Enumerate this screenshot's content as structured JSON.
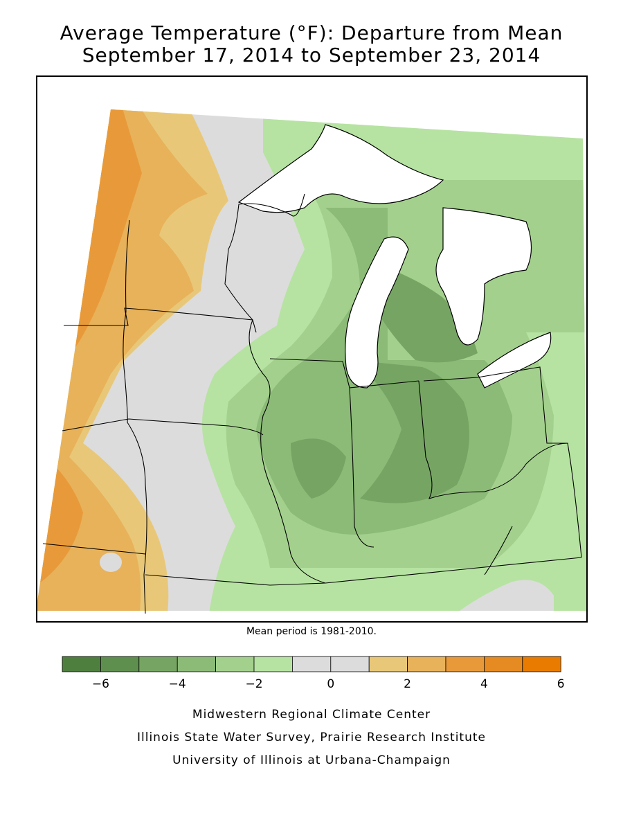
{
  "title": {
    "line1": "Average Temperature (°F): Departure from Mean",
    "line2": "September 17, 2014 to September 23, 2014"
  },
  "note": "Mean period is 1981-2010.",
  "legend": {
    "colors": [
      "#4f7f3e",
      "#5f8f4e",
      "#76a563",
      "#8cbb78",
      "#a3d18d",
      "#b6e3a2",
      "#dcdcdc",
      "#dcdcdc",
      "#e8c878",
      "#e8b25a",
      "#e89a3a",
      "#e68a22",
      "#e87b00"
    ],
    "tick_labels": [
      "−6",
      "−4",
      "−2",
      "0",
      "2",
      "4",
      "6"
    ]
  },
  "credits": [
    "Midwestern Regional Climate Center",
    "Illinois State Water Survey, Prairie Research Institute",
    "University of Illinois at Urbana-Champaign"
  ]
}
